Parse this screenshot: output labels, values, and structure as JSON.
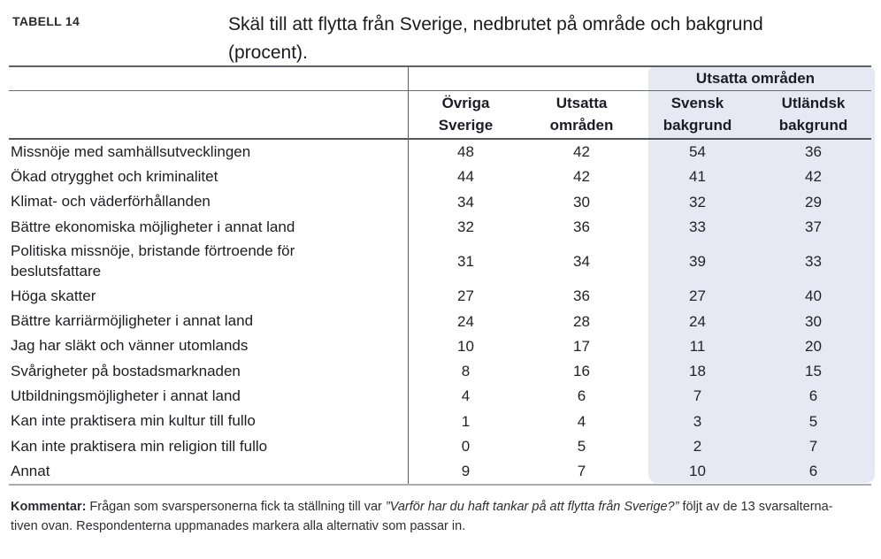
{
  "colors": {
    "highlight_background": "#E6E8F3",
    "rule_dark": "#5F5F6A",
    "rule_bottom_light": "#ABABB3",
    "text": "#1E1E22"
  },
  "header": {
    "tag": "TABELL 14",
    "title": "Skäl till att flytta från Sverige, nedbrutet på område och bakgrund (procent)."
  },
  "table": {
    "group_header": "Utsatta områden",
    "columns": [
      "Övriga\nSverige",
      "Utsatta\nområden",
      "Svensk\nbakgrund",
      "Utländsk\nbakgrund"
    ],
    "rows": [
      {
        "label": "Missnöje med samhällsutvecklingen",
        "values": [
          "48",
          "42",
          "54",
          "36"
        ]
      },
      {
        "label": "Ökad otrygghet och kriminalitet",
        "values": [
          "44",
          "42",
          "41",
          "42"
        ]
      },
      {
        "label": "Klimat- och väderförhållanden",
        "values": [
          "34",
          "30",
          "32",
          "29"
        ]
      },
      {
        "label": "Bättre ekonomiska möjligheter i annat land",
        "values": [
          "32",
          "36",
          "33",
          "37"
        ]
      },
      {
        "label": "Politiska missnöje, bristande förtroende för\nbeslutsfattare",
        "values": [
          "31",
          "34",
          "39",
          "33"
        ]
      },
      {
        "label": "Höga skatter",
        "values": [
          "27",
          "36",
          "27",
          "40"
        ]
      },
      {
        "label": "Bättre karriärmöjligheter i annat land",
        "values": [
          "24",
          "28",
          "24",
          "30"
        ]
      },
      {
        "label": "Jag har släkt och vänner utomlands",
        "values": [
          "10",
          "17",
          "11",
          "20"
        ]
      },
      {
        "label": "Svårigheter på bostadsmarknaden",
        "values": [
          "8",
          "16",
          "18",
          "15"
        ]
      },
      {
        "label": "Utbildningsmöjligheter i annat land",
        "values": [
          "4",
          "6",
          "7",
          "6"
        ]
      },
      {
        "label": "Kan inte praktisera min kultur till fullo",
        "values": [
          "1",
          "4",
          "3",
          "5"
        ]
      },
      {
        "label": "Kan inte praktisera min religion till fullo",
        "values": [
          "0",
          "5",
          "2",
          "7"
        ]
      },
      {
        "label": "Annat",
        "values": [
          "9",
          "7",
          "10",
          "6"
        ]
      }
    ]
  },
  "comment": {
    "label": "Kommentar:",
    "pre": " Frågan som svarspersonerna fick ta ställning till var ",
    "quote": "”Varför har du haft tankar på att flytta från Sverige?”",
    "post": " följt av de 13 svarsalterna-\ntiven ovan. Respondenterna uppmanades markera alla alternativ som passar in."
  }
}
